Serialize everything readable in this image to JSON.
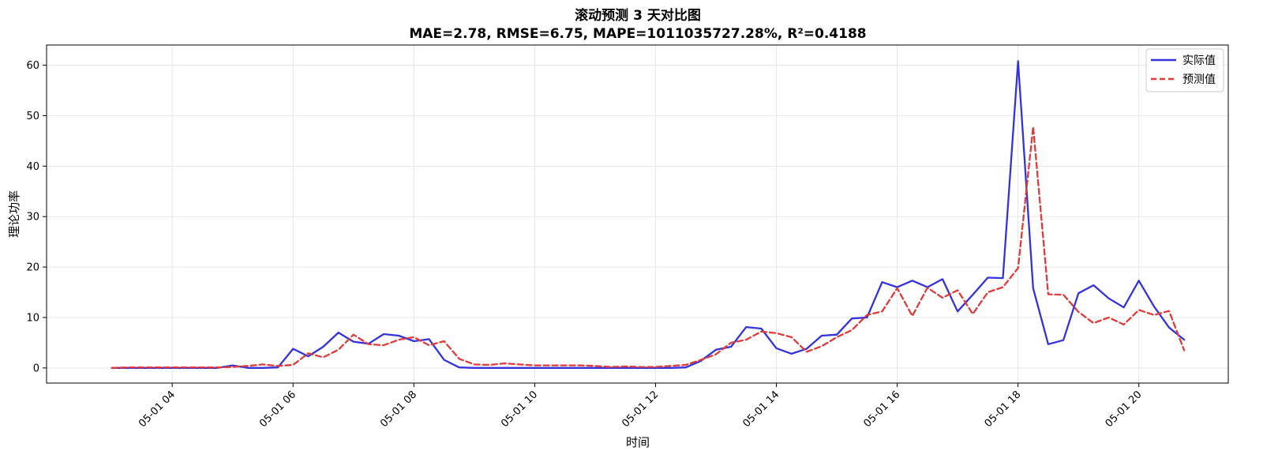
{
  "chart_data": {
    "type": "line",
    "title": "滚动预测 3 天对比图",
    "subtitle": "MAE=2.78, RMSE=6.75, MAPE=1011035727.28%, R²=0.4188",
    "xlabel": "时间",
    "ylabel": "理论功率",
    "x_tick_labels": [
      "05-01 04",
      "05-01 06",
      "05-01 08",
      "05-01 10",
      "05-01 12",
      "05-01 14",
      "05-01 16",
      "05-01 18",
      "05-01 20"
    ],
    "x_tick_hours": [
      4,
      6,
      8,
      10,
      12,
      14,
      16,
      18,
      20
    ],
    "y_ticks": [
      0,
      10,
      20,
      30,
      40,
      50,
      60
    ],
    "xlim": [
      1.92,
      21.48
    ],
    "ylim": [
      -3.0,
      64.0
    ],
    "grid": true,
    "legend_position": "top-right",
    "x_hours": [
      3.0,
      3.25,
      3.5,
      3.75,
      4.0,
      4.25,
      4.5,
      4.75,
      5.0,
      5.25,
      5.5,
      5.75,
      6.0,
      6.25,
      6.5,
      6.75,
      7.0,
      7.25,
      7.5,
      7.75,
      8.0,
      8.25,
      8.5,
      8.75,
      9.0,
      9.25,
      9.5,
      9.75,
      10.0,
      10.25,
      10.5,
      10.75,
      11.0,
      11.25,
      11.5,
      11.75,
      12.0,
      12.25,
      12.5,
      12.75,
      13.0,
      13.25,
      13.5,
      13.75,
      14.0,
      14.25,
      14.5,
      14.75,
      15.0,
      15.25,
      15.5,
      15.75,
      16.0,
      16.25,
      16.5,
      16.75,
      17.0,
      17.25,
      17.5,
      17.75,
      18.0,
      18.25,
      18.5,
      18.75,
      19.0,
      19.25,
      19.5,
      19.75,
      20.0,
      20.25,
      20.5,
      20.75
    ],
    "series": [
      {
        "name": "实际值",
        "color": "#3333dd",
        "style": "solid",
        "values": [
          0.0,
          0.0,
          0.0,
          0.0,
          0.0,
          0.0,
          0.0,
          0.0,
          0.5,
          0.0,
          0.0,
          0.1,
          3.8,
          2.3,
          4.2,
          7.0,
          5.2,
          4.8,
          6.7,
          6.4,
          5.3,
          5.7,
          1.6,
          0.1,
          0.0,
          0.0,
          0.0,
          0.0,
          0.0,
          0.0,
          0.0,
          0.0,
          0.0,
          0.0,
          0.0,
          0.0,
          0.0,
          0.0,
          0.1,
          1.4,
          3.6,
          4.2,
          8.1,
          7.8,
          3.9,
          2.8,
          3.8,
          6.4,
          6.6,
          9.8,
          10.0,
          17.0,
          16.0,
          17.3,
          16.0,
          17.6,
          11.2,
          14.5,
          17.9,
          17.8,
          60.8,
          15.8,
          4.7,
          5.5,
          14.8,
          16.4,
          13.8,
          12.0,
          17.3,
          12.2,
          8.0,
          5.6
        ]
      },
      {
        "name": "预测值",
        "color": "#e03a3a",
        "style": "dashed",
        "values": [
          0.0,
          0.1,
          0.1,
          0.1,
          0.1,
          0.1,
          0.1,
          0.1,
          0.2,
          0.4,
          0.7,
          0.4,
          0.6,
          2.9,
          2.1,
          3.6,
          6.6,
          4.7,
          4.5,
          5.6,
          6.1,
          4.5,
          5.3,
          1.8,
          0.7,
          0.6,
          0.9,
          0.7,
          0.5,
          0.5,
          0.5,
          0.5,
          0.4,
          0.2,
          0.3,
          0.2,
          0.2,
          0.4,
          0.6,
          1.6,
          2.7,
          5.0,
          5.6,
          7.2,
          6.9,
          6.1,
          3.2,
          4.3,
          6.1,
          7.5,
          10.5,
          11.2,
          15.8,
          10.3,
          15.9,
          13.9,
          15.4,
          10.7,
          15.0,
          16.0,
          19.8,
          47.8,
          14.6,
          14.5,
          11.1,
          8.9,
          10.0,
          8.6,
          11.5,
          10.5,
          11.3,
          3.5
        ]
      }
    ]
  }
}
